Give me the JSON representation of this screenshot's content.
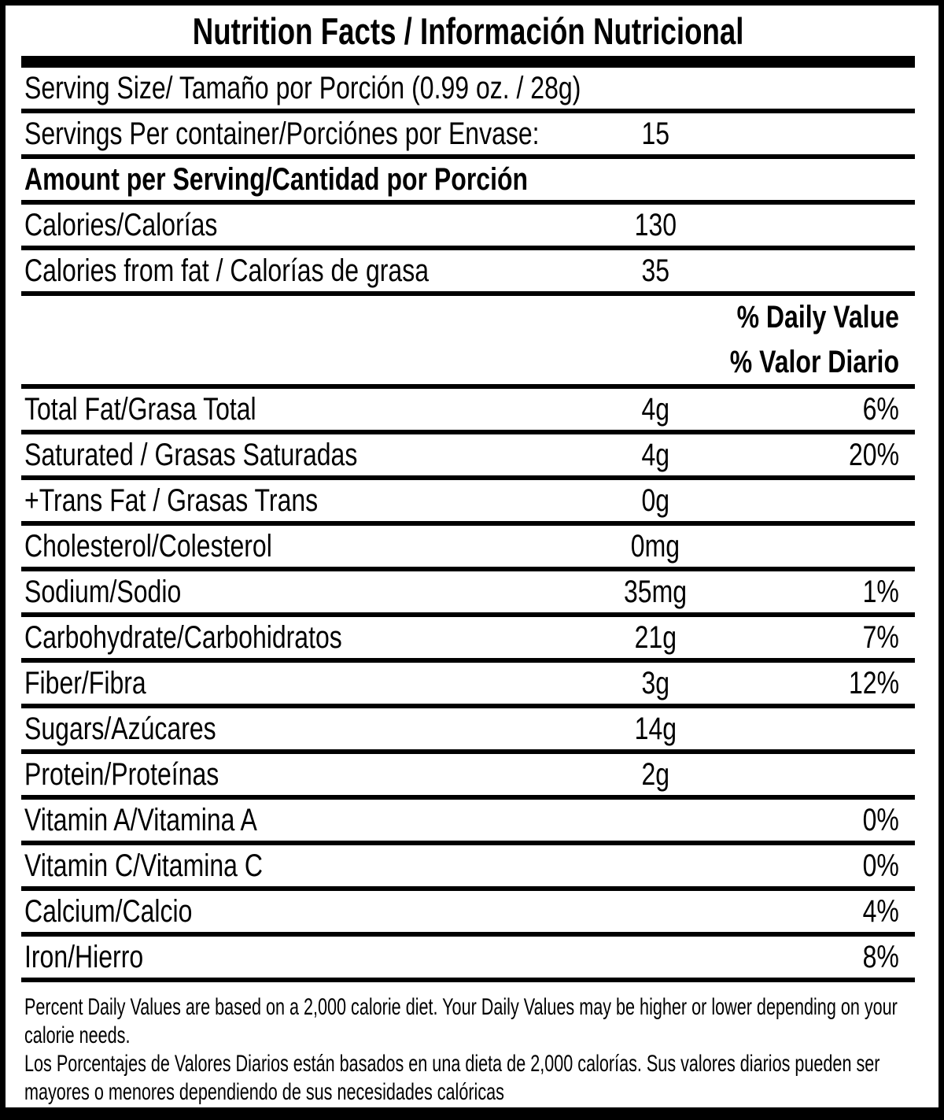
{
  "colors": {
    "text": "#000000",
    "background": "#ffffff"
  },
  "header": {
    "title": "Nutrition Facts / Información Nutricional"
  },
  "daily_value_header": {
    "en": "% Daily Value",
    "es": "% Valor Diario"
  },
  "rows": [
    {
      "label": "Serving Size/ Tamaño por Porción  (0.99 oz. / 28g)",
      "amount": "",
      "percent": ""
    },
    {
      "label": "Servings Per container/Porciónes por Envase:",
      "amount": "15",
      "percent": ""
    },
    {
      "label": "Amount per Serving/Cantidad por Porción",
      "amount": "",
      "percent": ""
    },
    {
      "label": "Calories/Calorías",
      "amount": "130",
      "percent": ""
    },
    {
      "label": "Calories from fat / Calorías de grasa",
      "amount": "35",
      "percent": ""
    },
    {
      "label": "Total Fat/Grasa Total",
      "amount": "4g",
      "percent": "6%"
    },
    {
      "label": "Saturated / Grasas Saturadas",
      "amount": "4g",
      "percent": "20%"
    },
    {
      "label": "+Trans Fat / Grasas Trans",
      "amount": "0g",
      "percent": ""
    },
    {
      "label": "Cholesterol/Colesterol",
      "amount": "0mg",
      "percent": ""
    },
    {
      "label": "Sodium/Sodio",
      "amount": "35mg",
      "percent": "1%"
    },
    {
      "label": "Carbohydrate/Carbohidratos",
      "amount": "21g",
      "percent": "7%"
    },
    {
      "label": "Fiber/Fibra",
      "amount": "3g",
      "percent": "12%"
    },
    {
      "label": "Sugars/Azúcares",
      "amount": "14g",
      "percent": ""
    },
    {
      "label": "Protein/Proteínas",
      "amount": "2g",
      "percent": ""
    },
    {
      "label": "Vitamin A/Vitamina A",
      "amount": "",
      "percent": "0%"
    },
    {
      "label": "Vitamin C/Vitamina C",
      "amount": "",
      "percent": "0%"
    },
    {
      "label": "Calcium/Calcio",
      "amount": "",
      "percent": "4%"
    },
    {
      "label": "Iron/Hierro",
      "amount": "",
      "percent": "8%"
    }
  ],
  "footnotes": {
    "en_line1": "Percent Daily Values are based on a 2,000 calorie diet. Your Daily Values may be higher or lower depending on your",
    "en_line2": "calorie needs.",
    "es_line1": "Los Porcentajes de Valores Diarios están basados en una dieta de 2,000 calorías. Sus valores diarios pueden ser",
    "es_line2": "mayores o menores dependiendo de sus necesidades calóricas"
  }
}
